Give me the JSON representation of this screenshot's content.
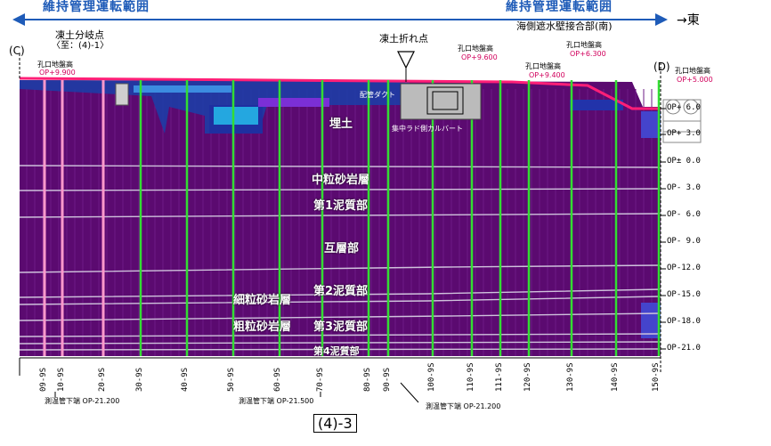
{
  "header": {
    "left_banner": "維持管理運転範囲",
    "right_banner": "維持管理運転範囲",
    "east": "→東"
  },
  "points": {
    "c_label": "(C)",
    "d_label": "(D)",
    "branch_title": "凍土分岐点",
    "branch_sub": "〈至：(4)-1〉",
    "fold_title": "凍土折れ点",
    "seawall_title": "海側遮水壁接合部(南)"
  },
  "ground_levels": [
    {
      "title": "孔口地盤高",
      "value": "OP+9.900"
    },
    {
      "title": "孔口地盤高",
      "value": "OP+9.600"
    },
    {
      "title": "孔口地盤高",
      "value": "OP+9.400"
    },
    {
      "title": "孔口地盤高",
      "value": "OP+6.300"
    },
    {
      "title": "孔口地盤高",
      "value": "OP+5.000"
    }
  ],
  "structures": {
    "duct": "配管ダクト",
    "culvert": "集中ラド側カルバート"
  },
  "layers": {
    "fill": "埋土",
    "medium_sand": "中粒砂岩層",
    "mud1": "第1泥質部",
    "alternating": "互層部",
    "fine_sand": "細粒砂岩層",
    "mud2": "第2泥質部",
    "coarse_sand": "粗粒砂岩層",
    "mud3": "第3泥質部",
    "mud4": "第4泥質部"
  },
  "elevations": [
    "OP+ 6.0",
    "OP+ 3.0",
    "OP± 0.0",
    "OP- 3.0",
    "OP- 6.0",
    "OP- 9.0",
    "OP-12.0",
    "OP-15.0",
    "OP-18.0",
    "OP-21.0"
  ],
  "ticks": [
    "09-9S",
    "10-9S",
    "20-9S",
    "30-9S",
    "40-9S",
    "50-9S",
    "60-9S",
    "70-9S",
    "80-9S",
    "90-9S",
    "100-9S",
    "110-9S",
    "111-9S",
    "120-9S",
    "130-9S",
    "140-9S",
    "150-9S"
  ],
  "bottom_notes": [
    "測温管下端 OP-21.200",
    "測温管下端 OP-21.500",
    "測温管下端 OP-21.200"
  ],
  "figure_id": "(4)-3",
  "colors": {
    "soil": "#5b0a70",
    "soil_dark": "#3a0650",
    "surface_line": "#ff1f77",
    "pipe_green": "#33dd33",
    "pipe_pink": "#ff99cc",
    "banner_blue": "#1e5bb8"
  }
}
